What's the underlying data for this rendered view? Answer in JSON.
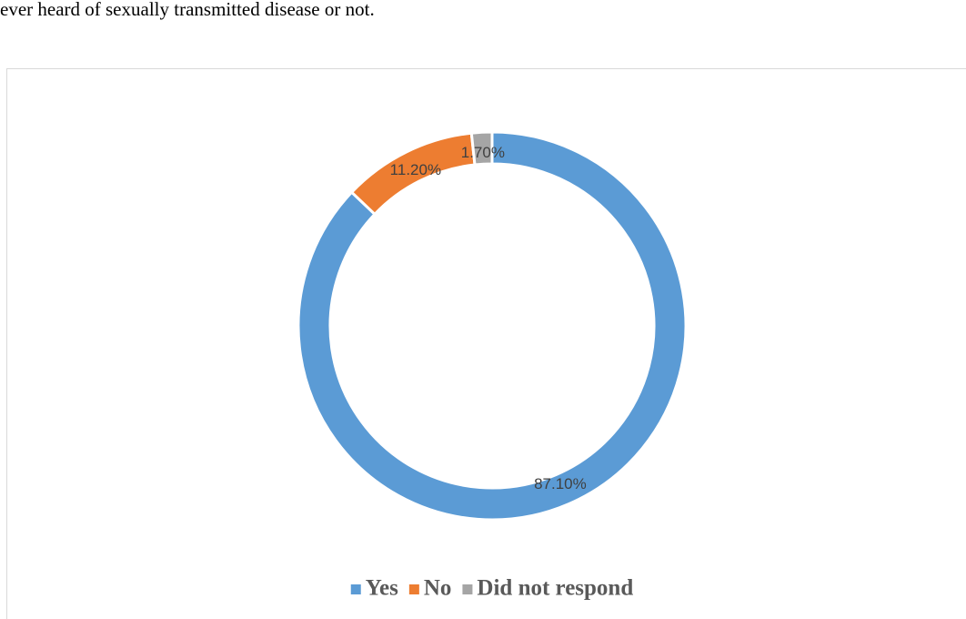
{
  "caption": "ever heard of sexually transmitted disease or not.",
  "chart_data": {
    "type": "doughnut",
    "categories": [
      "Yes",
      "No",
      "Did not respond"
    ],
    "values": [
      87.1,
      11.2,
      1.7
    ],
    "value_labels": [
      "87.10%",
      "11.20%",
      "1.70%"
    ],
    "colors": [
      "#5b9bd5",
      "#ed7d31",
      "#a5a5a5"
    ],
    "legend": "bottom"
  }
}
